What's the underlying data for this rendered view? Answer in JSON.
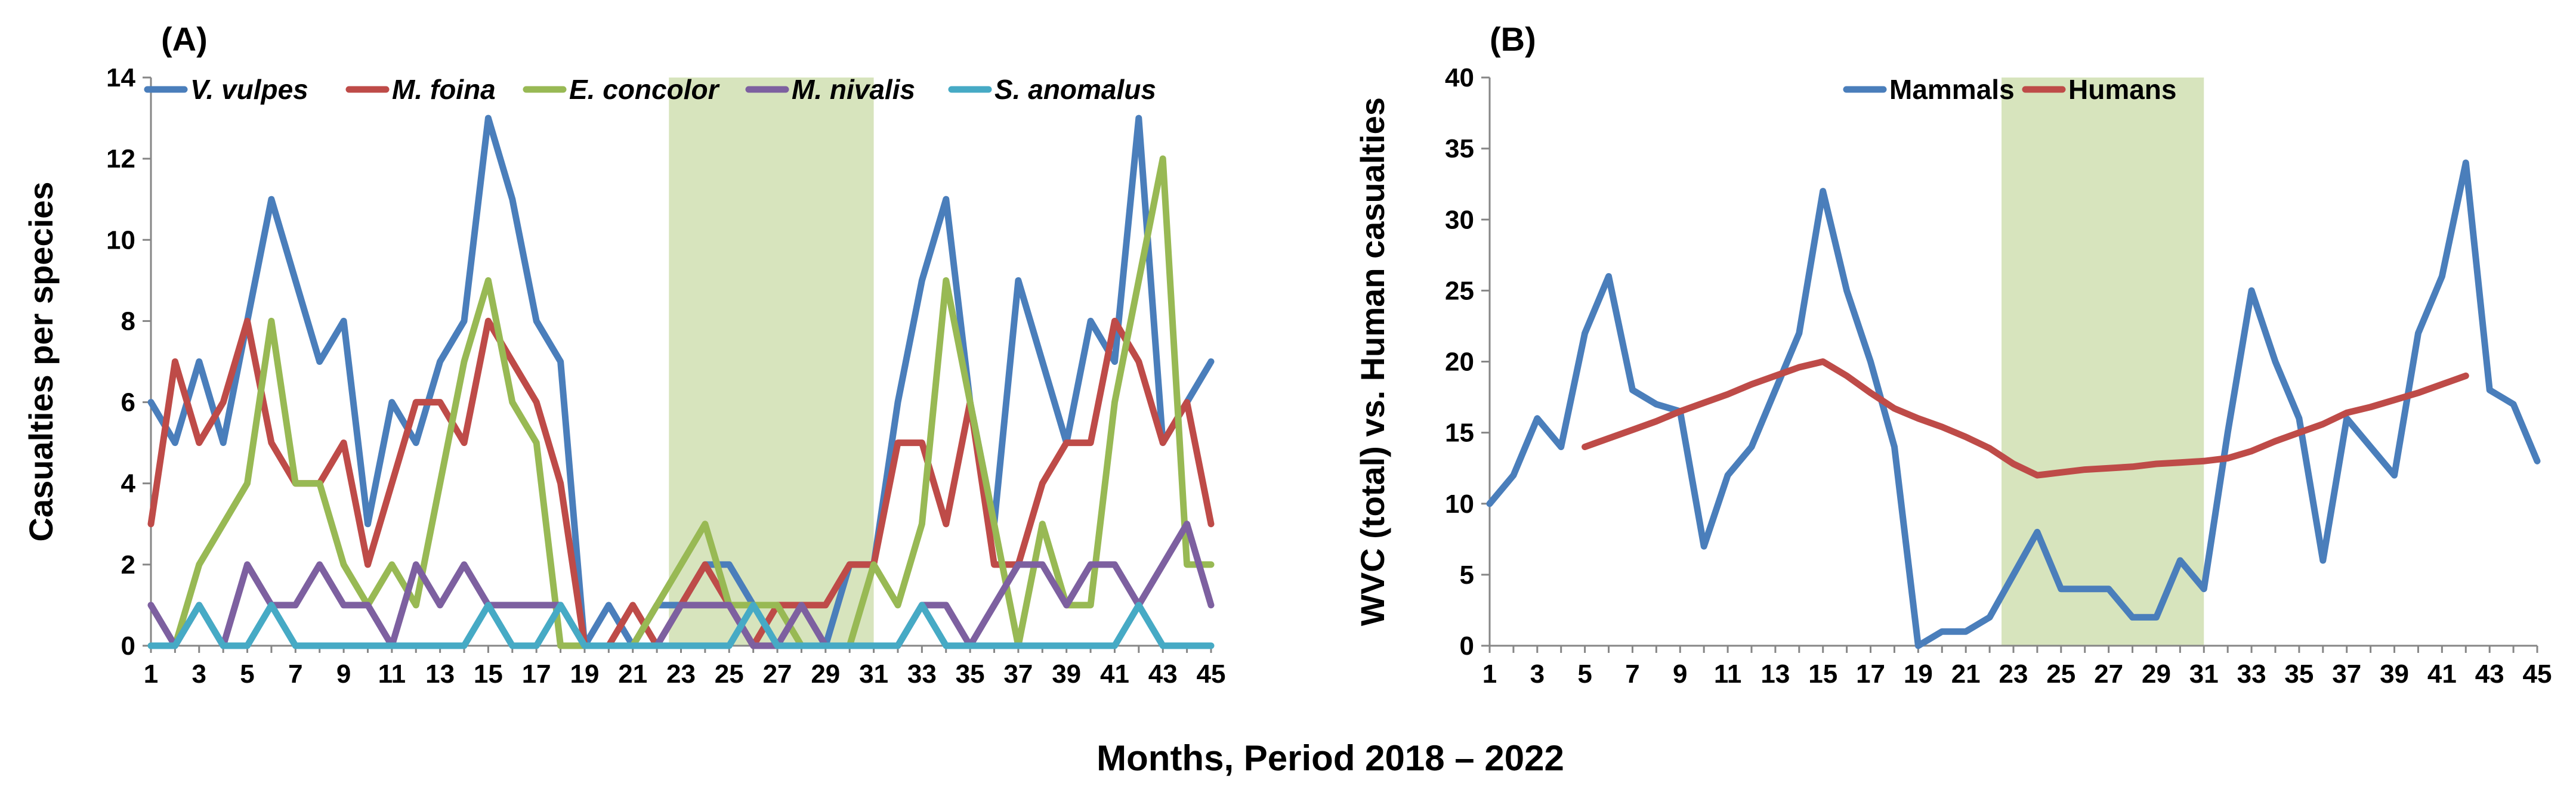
{
  "x_label": "Months, Period 2018 – 2022",
  "colors": {
    "shade": "#d7e4bd",
    "V. vulpes": "#4a7ebb",
    "M. foina": "#be4b48",
    "E. concolor": "#98b954",
    "M. nivalis": "#7d60a0",
    "S. anomalus": "#46aac5",
    "Mammals": "#4a7ebb",
    "Humans": "#be4b48"
  },
  "chart_data": [
    {
      "panel": "(A)",
      "type": "line",
      "ylabel": "Casualties per species",
      "ylim": [
        0,
        14
      ],
      "yticks": [
        0,
        2,
        4,
        6,
        8,
        10,
        12,
        14
      ],
      "xlim": [
        1,
        45
      ],
      "xticks": [
        1,
        3,
        5,
        7,
        9,
        11,
        13,
        15,
        17,
        19,
        21,
        23,
        25,
        27,
        29,
        31,
        33,
        35,
        37,
        39,
        41,
        43,
        45
      ],
      "shaded_x": [
        22.5,
        31
      ],
      "legend_position": "top",
      "series": [
        {
          "name": "V. vulpes",
          "x_start": 1,
          "values": [
            6,
            5,
            7,
            5,
            8,
            11,
            9,
            7,
            8,
            3,
            6,
            5,
            7,
            8,
            13,
            11,
            8,
            7,
            0,
            1,
            0,
            1,
            1,
            2,
            2,
            1,
            0,
            0,
            0,
            2,
            2,
            6,
            9,
            11,
            6,
            3,
            9,
            7,
            5,
            8,
            7,
            13,
            5,
            6,
            7
          ]
        },
        {
          "name": "M. foina",
          "x_start": 1,
          "values": [
            3,
            7,
            5,
            6,
            8,
            5,
            4,
            4,
            5,
            2,
            4,
            6,
            6,
            5,
            8,
            7,
            6,
            4,
            0,
            0,
            1,
            0,
            1,
            2,
            1,
            0,
            1,
            1,
            1,
            2,
            2,
            5,
            5,
            3,
            6,
            2,
            2,
            4,
            5,
            5,
            8,
            7,
            5,
            6,
            3
          ]
        },
        {
          "name": "E. concolor",
          "x_start": 1,
          "values": [
            0,
            0,
            2,
            3,
            4,
            8,
            4,
            4,
            2,
            1,
            2,
            1,
            4,
            7,
            9,
            6,
            5,
            0,
            0,
            0,
            0,
            1,
            2,
            3,
            1,
            1,
            1,
            0,
            0,
            0,
            2,
            1,
            3,
            9,
            6,
            3,
            0,
            3,
            1,
            1,
            6,
            9,
            12,
            2,
            2
          ]
        },
        {
          "name": "M. nivalis",
          "x_start": 1,
          "values": [
            1,
            0,
            1,
            0,
            2,
            1,
            1,
            2,
            1,
            1,
            0,
            2,
            1,
            2,
            1,
            1,
            1,
            1,
            0,
            0,
            0,
            0,
            1,
            1,
            1,
            0,
            0,
            1,
            0,
            0,
            0,
            0,
            1,
            1,
            0,
            1,
            2,
            2,
            1,
            2,
            2,
            1,
            2,
            3,
            1
          ]
        },
        {
          "name": "S. anomalus",
          "x_start": 1,
          "values": [
            0,
            0,
            1,
            0,
            0,
            1,
            0,
            0,
            0,
            0,
            0,
            0,
            0,
            0,
            1,
            0,
            0,
            1,
            0,
            0,
            0,
            0,
            0,
            0,
            0,
            1,
            0,
            0,
            0,
            0,
            0,
            0,
            1,
            0,
            0,
            0,
            0,
            0,
            0,
            0,
            0,
            1,
            0,
            0,
            0
          ]
        }
      ]
    },
    {
      "panel": "(B)",
      "type": "line",
      "ylabel": "WVC (total) vs. Human casualties",
      "ylim": [
        0,
        40
      ],
      "yticks": [
        0,
        5,
        10,
        15,
        20,
        25,
        30,
        35,
        40
      ],
      "xlim": [
        1,
        45
      ],
      "xticks": [
        1,
        3,
        5,
        7,
        9,
        11,
        13,
        15,
        17,
        19,
        21,
        23,
        25,
        27,
        29,
        31,
        33,
        35,
        37,
        39,
        41,
        43,
        45
      ],
      "shaded_x": [
        22.5,
        31
      ],
      "legend_position": "top",
      "series": [
        {
          "name": "Mammals",
          "x_start": 1,
          "values": [
            10,
            12,
            16,
            14,
            22,
            26,
            18,
            17,
            16.5,
            7,
            12,
            14,
            18,
            22,
            32,
            25,
            20,
            14,
            0,
            1,
            1,
            2,
            5,
            8,
            4,
            4,
            4,
            2,
            2,
            6,
            4,
            15,
            25,
            20,
            16,
            6,
            16,
            14,
            12,
            22,
            26,
            34,
            18,
            17,
            13
          ]
        },
        {
          "name": "Humans",
          "x_start": 5,
          "values": [
            14,
            14.6,
            15.2,
            15.8,
            16.5,
            17.1,
            17.7,
            18.4,
            19,
            19.6,
            20,
            19,
            17.8,
            16.7,
            16,
            15.4,
            14.7,
            13.9,
            12.8,
            12,
            12.2,
            12.4,
            12.5,
            12.6,
            12.8,
            12.9,
            13,
            13.2,
            13.7,
            14.4,
            15,
            15.6,
            16.4,
            16.8,
            17.3,
            17.8,
            18.4,
            19
          ]
        }
      ]
    }
  ]
}
